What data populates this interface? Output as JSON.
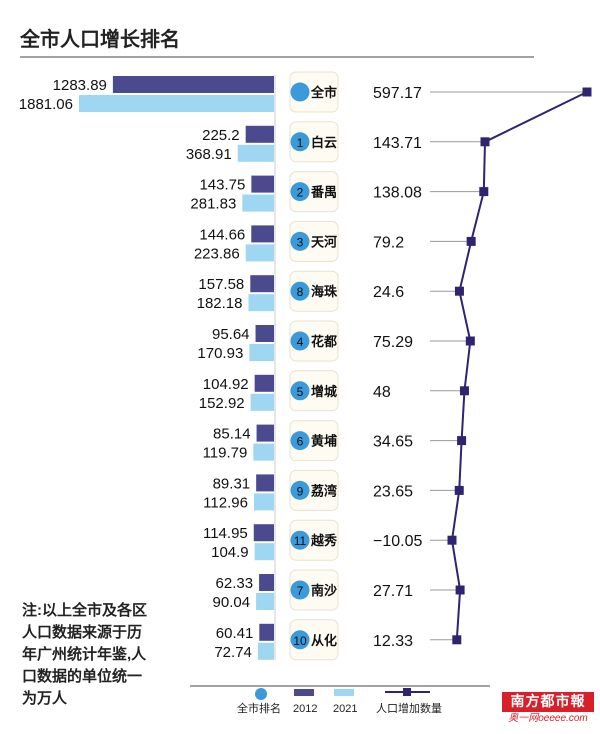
{
  "chart_data": {
    "type": "bar",
    "title": "全市人口增长排名",
    "note": "注:以上全市及各区人口数据来源于历年广州统计年鉴,人口数据的单位统一为万人",
    "legend": {
      "rank": "全市排名",
      "s2012": "2012",
      "s2021": "2021",
      "increase": "人口增加数量"
    },
    "categories": [
      "全市",
      "白云",
      "番禺",
      "天河",
      "海珠",
      "花都",
      "增城",
      "黄埔",
      "荔湾",
      "越秀",
      "南沙",
      "从化"
    ],
    "ranks": [
      "",
      "1",
      "2",
      "3",
      "8",
      "4",
      "5",
      "6",
      "9",
      "11",
      "7",
      "10"
    ],
    "series": [
      {
        "name": "2012",
        "values": [
          1283.89,
          225.2,
          143.75,
          144.66,
          157.58,
          95.64,
          104.92,
          85.14,
          89.31,
          114.95,
          62.33,
          60.41
        ]
      },
      {
        "name": "2021",
        "values": [
          1881.06,
          368.91,
          281.83,
          223.86,
          182.18,
          170.93,
          152.92,
          119.79,
          112.96,
          104.9,
          90.04,
          72.74
        ]
      },
      {
        "name": "人口增加数量",
        "values": [
          597.17,
          143.71,
          138.08,
          79.2,
          24.6,
          75.29,
          48,
          34.65,
          23.65,
          -10.05,
          27.71,
          12.33
        ]
      }
    ],
    "value_labels_2012": [
      "1283.89",
      "225.2",
      "143.75",
      "144.66",
      "157.58",
      "95.64",
      "104.92",
      "85.14",
      "89.31",
      "114.95",
      "62.33",
      "60.41"
    ],
    "value_labels_2021": [
      "1881.06",
      "368.91",
      "281.83",
      "223.86",
      "182.18",
      "170.93",
      "152.92",
      "119.79",
      "112.96",
      "104.9",
      "90.04",
      "72.74"
    ],
    "value_labels_increase": [
      "597.17",
      "143.71",
      "138.08",
      "79.2",
      "24.6",
      "75.29",
      "48",
      "34.65",
      "23.65",
      "−10.05",
      "27.71",
      "12.33"
    ],
    "colors": {
      "s2012": "#4b4a8e",
      "s2021": "#9fd6f2",
      "increase": "#2e2470",
      "rank_dot": "#3b9ad9",
      "guide_line": "#9a9a9a"
    }
  },
  "logo": {
    "text": "南方都市報",
    "sub": "奥一网oeeee.com"
  }
}
